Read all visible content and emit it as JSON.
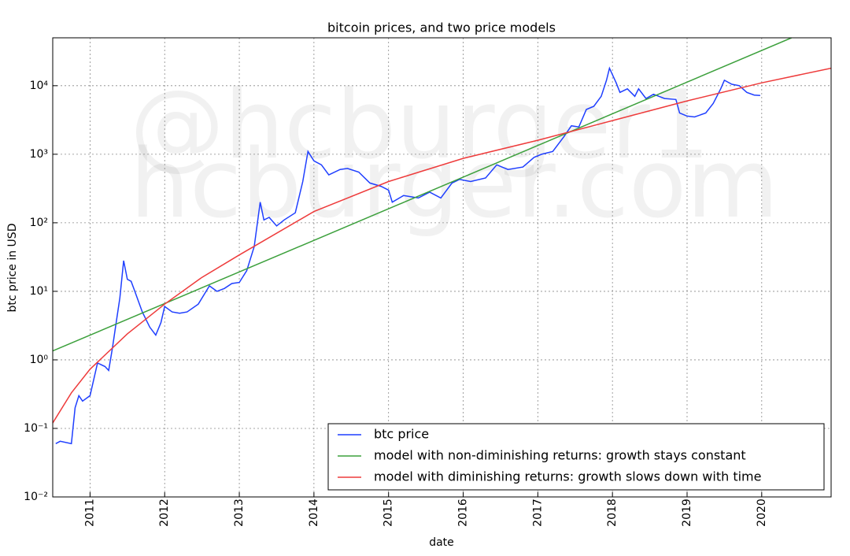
{
  "chart_data": {
    "type": "line",
    "title": "bitcoin prices, and two price models",
    "xlabel": "date",
    "ylabel": "btc price in USD",
    "watermark": [
      "@hcburger1",
      "hcburger.com"
    ],
    "log_y": true,
    "grid": true,
    "legend": "lower right",
    "xlim": [
      2010.5,
      2020.93
    ],
    "xticks": [
      2011,
      2012,
      2013,
      2014,
      2015,
      2016,
      2017,
      2018,
      2019,
      2020
    ],
    "ylim": [
      0.01,
      50000
    ],
    "yticks": [
      {
        "value": 0.01,
        "label": "10⁻²"
      },
      {
        "value": 0.1,
        "label": "10⁻¹"
      },
      {
        "value": 1,
        "label": "10⁰"
      },
      {
        "value": 10,
        "label": "10¹"
      },
      {
        "value": 100,
        "label": "10²"
      },
      {
        "value": 1000,
        "label": "10³"
      },
      {
        "value": 10000,
        "label": "10⁴"
      }
    ],
    "series": [
      {
        "name": "btc price",
        "color": "#1f3fff",
        "x": [
          2010.54,
          2010.6,
          2010.75,
          2010.8,
          2010.85,
          2010.9,
          2011.0,
          2011.1,
          2011.2,
          2011.25,
          2011.3,
          2011.35,
          2011.4,
          2011.45,
          2011.5,
          2011.55,
          2011.6,
          2011.7,
          2011.8,
          2011.88,
          2011.95,
          2012.0,
          2012.1,
          2012.2,
          2012.3,
          2012.45,
          2012.6,
          2012.7,
          2012.8,
          2012.9,
          2013.0,
          2013.1,
          2013.2,
          2013.28,
          2013.33,
          2013.4,
          2013.5,
          2013.6,
          2013.75,
          2013.85,
          2013.92,
          2014.0,
          2014.1,
          2014.2,
          2014.35,
          2014.45,
          2014.6,
          2014.75,
          2014.9,
          2015.0,
          2015.05,
          2015.2,
          2015.4,
          2015.55,
          2015.7,
          2015.85,
          2015.95,
          2016.1,
          2016.3,
          2016.45,
          2016.6,
          2016.8,
          2016.95,
          2017.05,
          2017.2,
          2017.35,
          2017.45,
          2017.55,
          2017.65,
          2017.75,
          2017.85,
          2017.92,
          2017.96,
          2018.05,
          2018.1,
          2018.2,
          2018.3,
          2018.35,
          2018.45,
          2018.55,
          2018.7,
          2018.85,
          2018.9,
          2019.0,
          2019.1,
          2019.25,
          2019.35,
          2019.45,
          2019.5,
          2019.6,
          2019.7,
          2019.8,
          2019.9,
          2019.98
        ],
        "values": [
          0.06,
          0.065,
          0.06,
          0.2,
          0.3,
          0.25,
          0.3,
          0.9,
          0.8,
          0.7,
          1.5,
          3.5,
          8,
          28,
          15,
          14,
          10,
          5,
          3,
          2.3,
          3.5,
          6,
          5,
          4.8,
          5,
          6.5,
          12,
          10,
          11,
          13,
          13.5,
          20,
          45,
          200,
          110,
          120,
          90,
          110,
          140,
          400,
          1100,
          800,
          700,
          500,
          600,
          620,
          550,
          380,
          340,
          300,
          200,
          250,
          230,
          280,
          230,
          380,
          430,
          400,
          450,
          700,
          600,
          650,
          900,
          1000,
          1100,
          1800,
          2600,
          2500,
          4500,
          5000,
          7000,
          12000,
          18000,
          11000,
          8000,
          9000,
          7000,
          9000,
          6500,
          7500,
          6500,
          6300,
          4000,
          3600,
          3500,
          4000,
          5500,
          9000,
          12000,
          10500,
          10000,
          8000,
          7300,
          7200
        ]
      },
      {
        "name": "model with non-diminishing returns: growth stays constant",
        "color": "#3ca03c",
        "x": [
          2010.5,
          2015,
          2020.4
        ],
        "values": [
          1.35,
          160,
          50000
        ]
      },
      {
        "name": "model with diminishing returns: growth slows down with time",
        "color": "#ee3b3b",
        "x": [
          2010.5,
          2010.75,
          2011,
          2011.5,
          2012,
          2012.5,
          2013,
          2014,
          2015,
          2016,
          2017,
          2018,
          2019,
          2020,
          2020.93
        ],
        "values": [
          0.12,
          0.33,
          0.73,
          2.4,
          6.5,
          16,
          34,
          146,
          400,
          870,
          1600,
          3100,
          6000,
          11000,
          18000
        ]
      }
    ]
  }
}
